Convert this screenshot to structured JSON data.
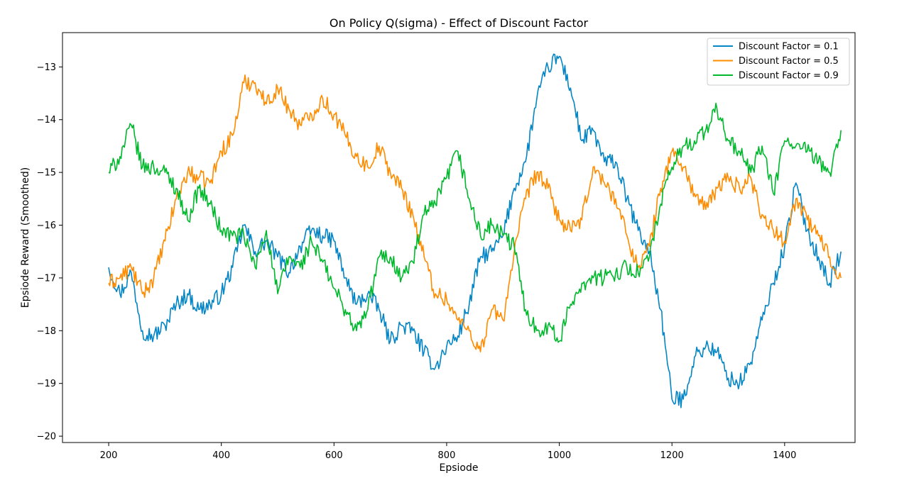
{
  "chart_data": {
    "type": "line",
    "title": "On Policy Q(sigma) - Effect of Discount Factor",
    "xlabel": "Epsiode",
    "ylabel": "Epsiode Reward (Smoothed)",
    "xlim": [
      118,
      1525
    ],
    "ylim": [
      -20.12,
      -12.35
    ],
    "xticks": [
      200,
      400,
      600,
      800,
      1000,
      1200,
      1400
    ],
    "xtick_labels": [
      "200",
      "400",
      "600",
      "800",
      "1000",
      "1200",
      "1400"
    ],
    "yticks": [
      -13,
      -14,
      -15,
      -16,
      -17,
      -18,
      -19,
      -20
    ],
    "ytick_labels": [
      "−13",
      "−14",
      "−15",
      "−16",
      "−17",
      "−18",
      "−19",
      "−20"
    ],
    "grid": false,
    "legend_position": "top-right",
    "series": [
      {
        "name": "Discount Factor = 0.1",
        "color": "#0485c5",
        "x": [
          200,
          220,
          240,
          260,
          280,
          300,
          320,
          340,
          360,
          380,
          400,
          420,
          440,
          460,
          480,
          500,
          520,
          540,
          560,
          580,
          600,
          620,
          640,
          660,
          680,
          700,
          720,
          740,
          760,
          780,
          800,
          820,
          840,
          860,
          880,
          900,
          920,
          940,
          960,
          980,
          1000,
          1020,
          1040,
          1060,
          1080,
          1100,
          1120,
          1140,
          1160,
          1180,
          1200,
          1220,
          1240,
          1260,
          1280,
          1300,
          1320,
          1340,
          1360,
          1380,
          1400,
          1420,
          1440,
          1460,
          1480,
          1500
        ],
        "y": [
          -16.8,
          -17.3,
          -16.9,
          -18.0,
          -18.1,
          -17.9,
          -17.5,
          -17.3,
          -17.6,
          -17.5,
          -17.3,
          -16.8,
          -16.0,
          -16.5,
          -16.3,
          -16.6,
          -16.9,
          -16.4,
          -16.1,
          -16.2,
          -16.3,
          -17.0,
          -17.5,
          -17.3,
          -17.6,
          -18.2,
          -17.9,
          -18.0,
          -18.4,
          -18.7,
          -18.3,
          -18.1,
          -17.5,
          -16.6,
          -16.5,
          -16.2,
          -15.3,
          -14.8,
          -13.6,
          -13.0,
          -12.8,
          -13.4,
          -14.4,
          -14.2,
          -14.8,
          -14.8,
          -15.5,
          -16.1,
          -16.5,
          -17.6,
          -19.3,
          -19.3,
          -18.5,
          -18.3,
          -18.4,
          -18.9,
          -19.0,
          -18.6,
          -17.8,
          -17.1,
          -16.4,
          -15.2,
          -16.1,
          -16.6,
          -17.1,
          -16.5
        ]
      },
      {
        "name": "Discount Factor = 0.5",
        "color": "#ff8c00",
        "x": [
          200,
          220,
          240,
          260,
          280,
          300,
          320,
          340,
          360,
          380,
          400,
          420,
          440,
          460,
          480,
          500,
          520,
          540,
          560,
          580,
          600,
          620,
          640,
          660,
          680,
          700,
          720,
          740,
          760,
          780,
          800,
          820,
          840,
          860,
          880,
          900,
          920,
          940,
          960,
          980,
          1000,
          1020,
          1040,
          1060,
          1080,
          1100,
          1120,
          1140,
          1160,
          1180,
          1200,
          1220,
          1240,
          1260,
          1280,
          1300,
          1320,
          1340,
          1360,
          1380,
          1400,
          1420,
          1440,
          1460,
          1480,
          1500
        ],
        "y": [
          -17.1,
          -17.0,
          -16.8,
          -17.3,
          -17.0,
          -16.3,
          -15.5,
          -15.0,
          -15.1,
          -15.2,
          -14.6,
          -14.3,
          -13.3,
          -13.3,
          -13.7,
          -13.4,
          -13.8,
          -14.1,
          -13.9,
          -13.6,
          -13.9,
          -14.3,
          -14.7,
          -14.9,
          -14.5,
          -15.0,
          -15.3,
          -15.8,
          -16.6,
          -17.3,
          -17.4,
          -17.8,
          -18.0,
          -18.4,
          -17.6,
          -17.8,
          -16.5,
          -15.5,
          -15.0,
          -15.3,
          -15.9,
          -16.1,
          -15.9,
          -14.9,
          -15.2,
          -15.5,
          -16.2,
          -16.8,
          -16.4,
          -15.3,
          -14.6,
          -14.9,
          -15.4,
          -15.7,
          -15.3,
          -15.1,
          -15.3,
          -15.1,
          -15.8,
          -16.1,
          -16.3,
          -15.5,
          -15.9,
          -16.2,
          -16.6,
          -17.0
        ]
      },
      {
        "name": "Discount Factor = 0.9",
        "color": "#00b82c",
        "x": [
          200,
          220,
          240,
          260,
          280,
          300,
          320,
          340,
          360,
          380,
          400,
          420,
          440,
          460,
          480,
          500,
          520,
          540,
          560,
          580,
          600,
          620,
          640,
          660,
          680,
          700,
          720,
          740,
          760,
          780,
          800,
          820,
          840,
          860,
          880,
          900,
          920,
          940,
          960,
          980,
          1000,
          1020,
          1040,
          1060,
          1080,
          1100,
          1120,
          1140,
          1160,
          1180,
          1200,
          1220,
          1240,
          1260,
          1280,
          1300,
          1320,
          1340,
          1360,
          1380,
          1400,
          1420,
          1440,
          1460,
          1480,
          1500
        ],
        "y": [
          -15.0,
          -14.7,
          -14.1,
          -14.9,
          -14.9,
          -15.0,
          -15.3,
          -15.9,
          -15.3,
          -15.6,
          -16.1,
          -16.2,
          -16.2,
          -16.8,
          -16.1,
          -17.3,
          -16.6,
          -16.8,
          -16.3,
          -16.7,
          -17.2,
          -17.6,
          -18.0,
          -17.6,
          -16.6,
          -16.6,
          -17.0,
          -16.7,
          -15.8,
          -15.6,
          -15.1,
          -14.6,
          -15.5,
          -16.2,
          -16.0,
          -16.2,
          -16.4,
          -17.6,
          -18.0,
          -17.9,
          -18.2,
          -17.5,
          -17.1,
          -17.0,
          -17.0,
          -16.9,
          -16.8,
          -16.9,
          -16.6,
          -15.6,
          -14.9,
          -14.5,
          -14.4,
          -14.2,
          -13.8,
          -14.4,
          -14.6,
          -15.0,
          -14.5,
          -15.4,
          -14.4,
          -14.5,
          -14.6,
          -14.8,
          -15.0,
          -14.2
        ]
      }
    ]
  }
}
